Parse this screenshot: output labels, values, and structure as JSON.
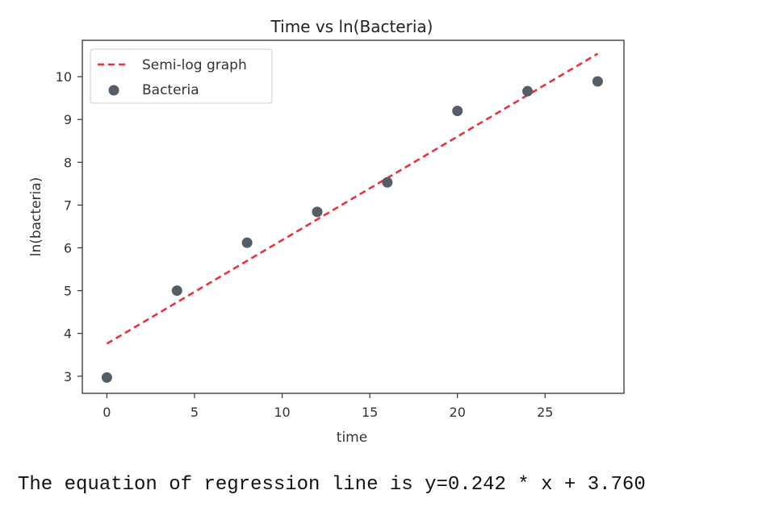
{
  "chart_data": {
    "type": "scatter",
    "title": "Time vs ln(Bacteria)",
    "xlabel": "time",
    "ylabel": "ln(bacteria)",
    "xlim": [
      -1.4,
      29.5
    ],
    "ylim": [
      2.6,
      10.85
    ],
    "xticks": [
      0,
      5,
      10,
      15,
      20,
      25
    ],
    "yticks": [
      3,
      4,
      5,
      6,
      7,
      8,
      9,
      10
    ],
    "grid": false,
    "legend_position": "top-left",
    "series": [
      {
        "name": "Semi-log graph",
        "kind": "line",
        "style": "dashed",
        "color": "#e8323c",
        "x": [
          0,
          28
        ],
        "y": [
          3.76,
          10.536
        ]
      },
      {
        "name": "Bacteria",
        "kind": "scatter",
        "color": "#555e66",
        "x": [
          0,
          4,
          8,
          12,
          16,
          20,
          24,
          28
        ],
        "y": [
          2.97,
          5.0,
          6.12,
          6.84,
          7.53,
          9.2,
          9.66,
          9.89
        ]
      }
    ]
  },
  "output_text": "The equation of regression line is y=0.242 * x + 3.760"
}
